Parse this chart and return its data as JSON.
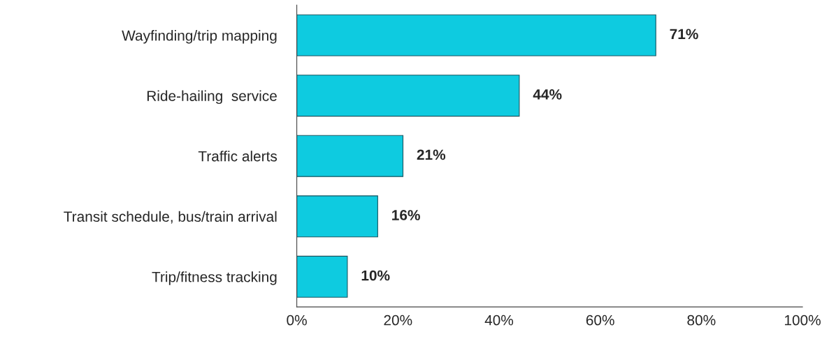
{
  "chart_data": {
    "type": "bar",
    "orientation": "horizontal",
    "categories": [
      "Wayfinding/trip mapping",
      "Ride-hailing  service",
      "Traffic alerts",
      "Transit schedule, bus/train arrival",
      "Trip/fitness tracking"
    ],
    "values": [
      71,
      44,
      21,
      16,
      10
    ],
    "value_labels": [
      "71%",
      "44%",
      "21%",
      "16%",
      "10%"
    ],
    "color": "#0ecbe0",
    "xlim": [
      0,
      100
    ],
    "xticks": [
      {
        "value": 0,
        "label": "0%"
      },
      {
        "value": 20,
        "label": "20%"
      },
      {
        "value": 40,
        "label": "40%"
      },
      {
        "value": 60,
        "label": "60%"
      },
      {
        "value": 80,
        "label": "80%"
      },
      {
        "value": 100,
        "label": "100%"
      }
    ],
    "grid": false,
    "legend": false
  }
}
